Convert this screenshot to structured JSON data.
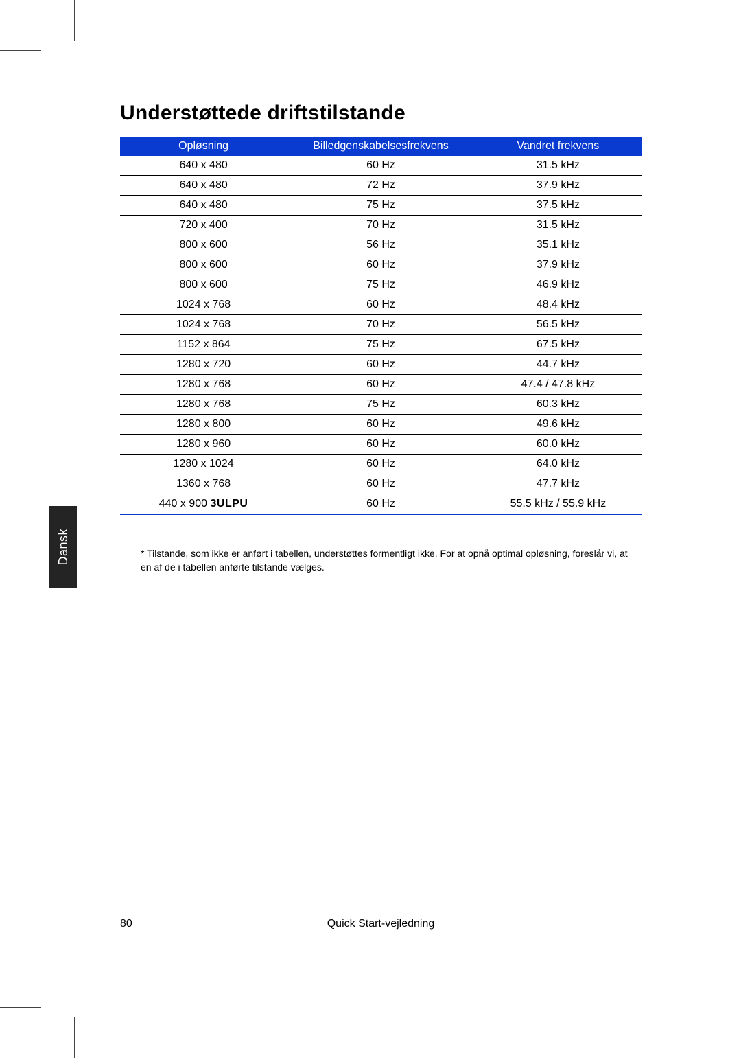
{
  "title": "Understøttede driftstilstande",
  "table": {
    "header_bg": "#0a3bd1",
    "header_color": "#ffffff",
    "row_border_color": "#000000",
    "bottom_border_color": "#0a3bd1",
    "columns": [
      "Opløsning",
      "Billedgenskabelsesfrekvens",
      "Vandret frekvens"
    ],
    "rows": [
      [
        "640 x 480",
        "60 Hz",
        "31.5 kHz"
      ],
      [
        "640 x 480",
        "72 Hz",
        "37.9 kHz"
      ],
      [
        "640 x 480",
        "75 Hz",
        "37.5 kHz"
      ],
      [
        "720 x 400",
        "70 Hz",
        "31.5 kHz"
      ],
      [
        "800 x 600",
        "56 Hz",
        "35.1 kHz"
      ],
      [
        "800 x 600",
        "60 Hz",
        "37.9 kHz"
      ],
      [
        "800 x 600",
        "75 Hz",
        "46.9 kHz"
      ],
      [
        "1024 x 768",
        "60 Hz",
        "48.4 kHz"
      ],
      [
        "1024 x 768",
        "70 Hz",
        "56.5 kHz"
      ],
      [
        "1152 x 864",
        "75 Hz",
        "67.5 kHz"
      ],
      [
        "1280 x 720",
        "60 Hz",
        "44.7 kHz"
      ],
      [
        "1280 x 768",
        "60 Hz",
        "47.4 / 47.8 kHz"
      ],
      [
        "1280 x 768",
        "75 Hz",
        "60.3 kHz"
      ],
      [
        "1280 x 800",
        "60 Hz",
        "49.6 kHz"
      ],
      [
        "1280 x 960",
        "60 Hz",
        "60.0 kHz"
      ],
      [
        "1280 x 1024",
        "60 Hz",
        "64.0 kHz"
      ],
      [
        "1360 x 768",
        "60 Hz",
        "47.7 kHz"
      ]
    ],
    "last_row": {
      "resolution_prefix": "440 x 900",
      "resolution_label": "3ULPU",
      "refresh": "60 Hz",
      "horiz": "55.5 kHz / 55.9 kHz"
    }
  },
  "footnote": "* Tilstande, som ikke er anført i tabellen, understøttes formentligt ikke. For at opnå optimal opløsning, foreslår vi, at en af de i tabellen anførte tilstande vælges.",
  "lang_tab": "Dansk",
  "footer": {
    "page_number": "80",
    "doc_title": "Quick Start-vejledning"
  }
}
